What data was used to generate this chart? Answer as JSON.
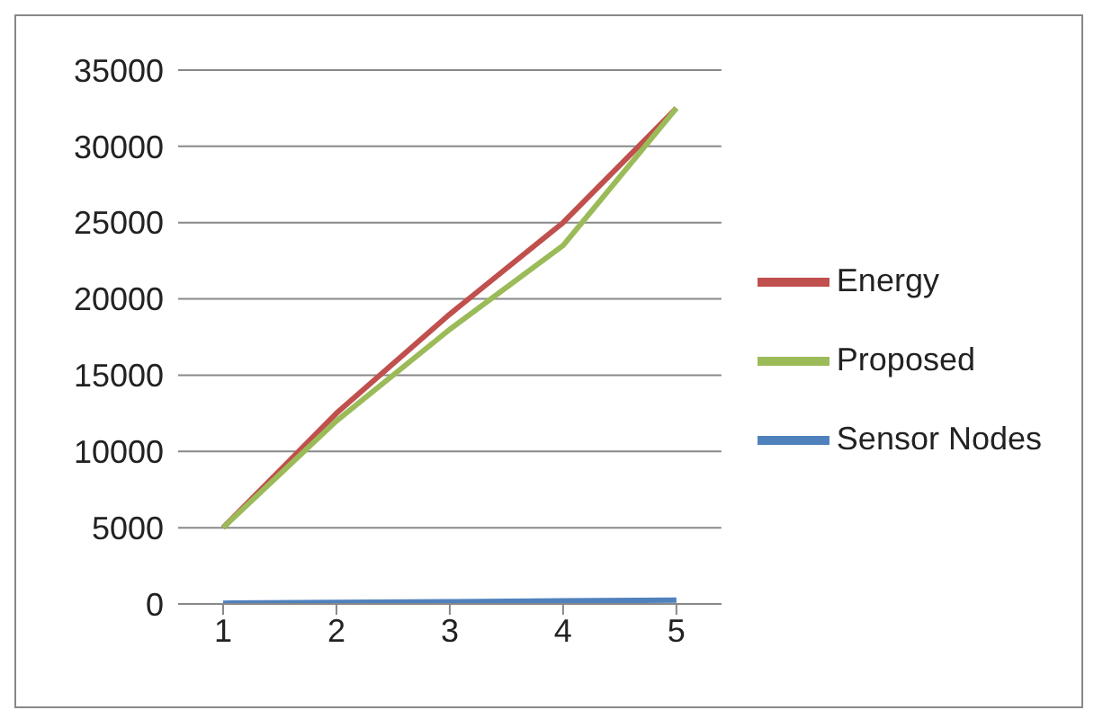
{
  "chart_data": {
    "type": "line",
    "categories": [
      "1",
      "2",
      "3",
      "4",
      "5"
    ],
    "series": [
      {
        "name": "Sensor Nodes",
        "color": "#4f81bd",
        "values": [
          50,
          100,
          150,
          200,
          250
        ]
      },
      {
        "name": "Energy",
        "color": "#c0504d",
        "values": [
          5000,
          12500,
          19000,
          25000,
          32500
        ]
      },
      {
        "name": "Proposed",
        "color": "#9bbb59",
        "values": [
          5000,
          12000,
          18000,
          23500,
          32500
        ]
      }
    ],
    "ylim": [
      0,
      35000
    ],
    "yticks": [
      0,
      5000,
      10000,
      15000,
      20000,
      25000,
      30000,
      35000
    ],
    "grid": "y",
    "legend": "right",
    "marker": "none",
    "line_style": "solid"
  }
}
